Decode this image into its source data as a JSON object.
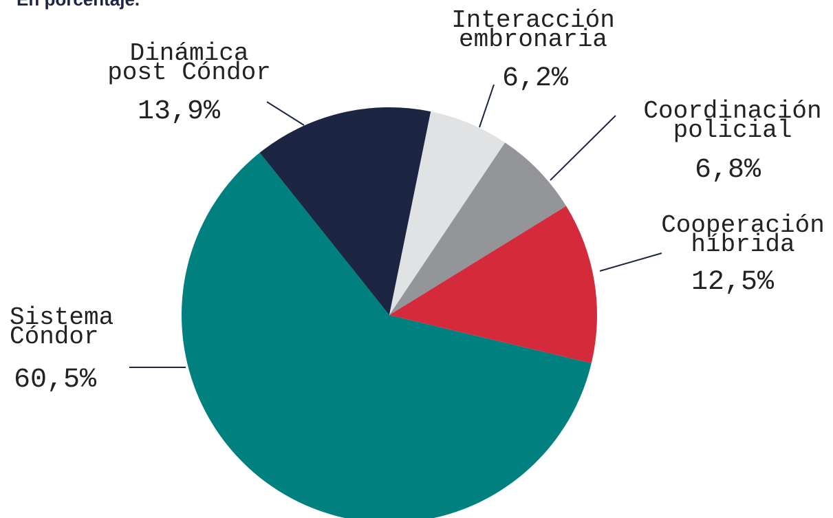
{
  "chart_data": {
    "type": "pie",
    "subtitle": "En porcentaje.",
    "categories": [
      "Sistema Cóndor",
      "Dinámica post Cóndor",
      "Interacción embronaria",
      "Coordinación policial",
      "Cooperación híbrida"
    ],
    "values": [
      60.5,
      13.9,
      6.2,
      6.8,
      12.5
    ],
    "value_labels": [
      "60,5%",
      "13,9%",
      "6,2%",
      "6,8%",
      "12,5%"
    ],
    "colors": [
      "#00807f",
      "#1c2541",
      "#e1e2e4",
      "#939598",
      "#d42a3c"
    ]
  }
}
